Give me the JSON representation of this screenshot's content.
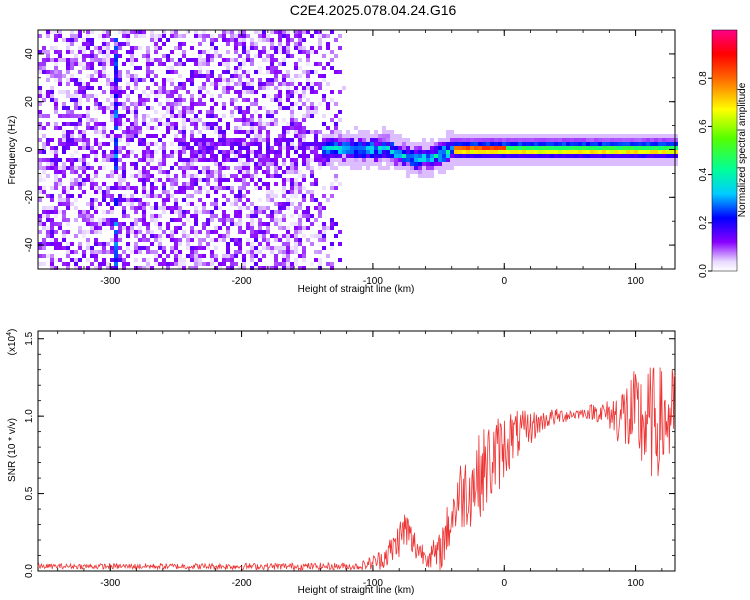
{
  "title": "C2E4.2025.078.04.24.G16",
  "chart_data": [
    {
      "type": "heatmap",
      "xlabel": "Height of straight line (km)",
      "ylabel": "Frequency (Hz)",
      "xlim": [
        -355,
        130
      ],
      "ylim": [
        -50,
        50
      ],
      "x_ticks": [
        "-300",
        "-200",
        "-100",
        "0",
        "100"
      ],
      "y_ticks": [
        "-40",
        "-20",
        "0",
        "20",
        "40"
      ],
      "colorbar": {
        "label": "Normalized spectral amplitude",
        "range": [
          0,
          1
        ],
        "ticks": [
          "0.0",
          "0.2",
          "0.4",
          "0.6",
          "0.8"
        ]
      },
      "features": {
        "noise_region_x": [
          -355,
          -120
        ],
        "signal_line_start_x": -140,
        "signal_frequency_hz": 1,
        "bright_streak_x": -298
      }
    },
    {
      "type": "line",
      "xlabel": "Height of straight line (km)",
      "ylabel": "SNR (10 * v/v)",
      "scale_label": "(x10",
      "scale_exp": "4",
      "scale_close": ")",
      "xlim": [
        -355,
        130
      ],
      "ylim": [
        0,
        1.55
      ],
      "x_ticks": [
        "-300",
        "-200",
        "-100",
        "0",
        "100"
      ],
      "y_ticks": [
        "0.0",
        "0.5",
        "1.0",
        "1.5"
      ],
      "color": "#ee3333",
      "envelope": [
        [
          -355,
          0.03
        ],
        [
          -200,
          0.03
        ],
        [
          -110,
          0.03
        ],
        [
          -95,
          0.07
        ],
        [
          -85,
          0.14
        ],
        [
          -75,
          0.28
        ],
        [
          -70,
          0.18
        ],
        [
          -60,
          0.1
        ],
        [
          -50,
          0.1
        ],
        [
          -45,
          0.22
        ],
        [
          -40,
          0.35
        ],
        [
          -35,
          0.48
        ],
        [
          -25,
          0.55
        ],
        [
          -15,
          0.66
        ],
        [
          -5,
          0.75
        ],
        [
          5,
          0.86
        ],
        [
          15,
          0.9
        ],
        [
          25,
          0.95
        ],
        [
          35,
          0.99
        ],
        [
          50,
          1.01
        ],
        [
          60,
          1.02
        ],
        [
          70,
          1.03
        ],
        [
          80,
          1.01
        ],
        [
          90,
          1.0
        ],
        [
          100,
          0.98
        ],
        [
          110,
          0.95
        ],
        [
          120,
          0.97
        ],
        [
          130,
          1.0
        ]
      ],
      "noise_amplitude": [
        [
          -355,
          0.01
        ],
        [
          -110,
          0.015
        ],
        [
          -95,
          0.04
        ],
        [
          -75,
          0.09
        ],
        [
          -60,
          0.04
        ],
        [
          -45,
          0.1
        ],
        [
          -30,
          0.16
        ],
        [
          -10,
          0.18
        ],
        [
          10,
          0.1
        ],
        [
          30,
          0.04
        ],
        [
          60,
          0.02
        ],
        [
          80,
          0.06
        ],
        [
          95,
          0.18
        ],
        [
          110,
          0.24
        ],
        [
          130,
          0.2
        ]
      ]
    }
  ]
}
